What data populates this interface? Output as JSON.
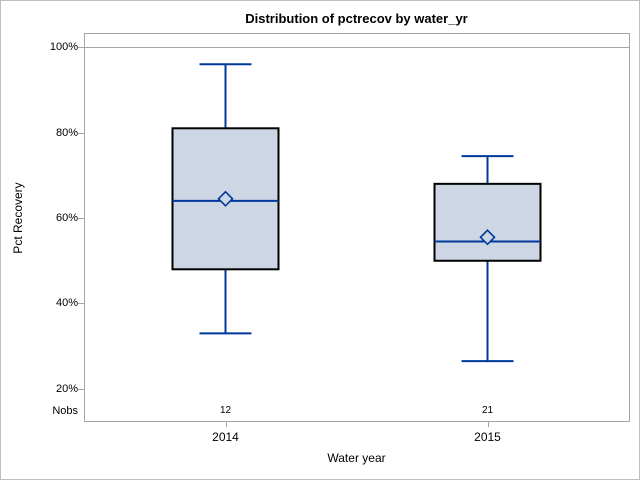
{
  "chart_data": {
    "type": "box",
    "title": "Distribution of pctrecov by water_yr",
    "xlabel": "Water year",
    "ylabel": "Pct Recovery",
    "nobs_label": "Nobs",
    "categories": [
      "2014",
      "2015"
    ],
    "nobs": [
      "12",
      "21"
    ],
    "y_ticks": [
      {
        "value": 100,
        "label": "100%"
      },
      {
        "value": 80,
        "label": "80%"
      },
      {
        "value": 60,
        "label": "60%"
      },
      {
        "value": 40,
        "label": "40%"
      },
      {
        "value": 20,
        "label": "20%"
      }
    ],
    "ylim": [
      12.5,
      103.3
    ],
    "grid": false,
    "legend": "none",
    "reference_lines": [
      100
    ],
    "series": [
      {
        "category": "2014",
        "nobs": 12,
        "whisker_low": 33,
        "q1": 48,
        "median": 64,
        "q3": 81,
        "whisker_high": 96,
        "mean": 64.5
      },
      {
        "category": "2015",
        "nobs": 21,
        "whisker_low": 26.5,
        "q1": 50,
        "median": 54.5,
        "q3": 68,
        "whisker_high": 74.5,
        "mean": 55.5
      }
    ],
    "colors": {
      "box_fill": "#ccd6e4",
      "box_border": "#000000",
      "line": "#00389c",
      "frame": "#a6a6a6",
      "text": "#000000"
    }
  }
}
